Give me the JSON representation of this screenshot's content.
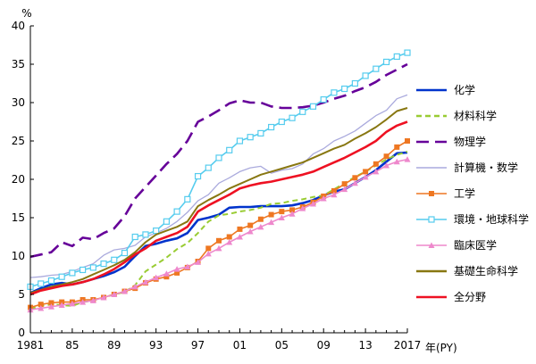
{
  "chart_data": {
    "type": "line",
    "y_unit_label": "%",
    "x_unit_label": "年(PY)",
    "ylim": [
      0,
      40
    ],
    "y_ticks": [
      0,
      5,
      10,
      15,
      20,
      25,
      30,
      35,
      40
    ],
    "xlim": [
      1981,
      2017
    ],
    "x_ticks": [
      1981,
      1985,
      1989,
      1993,
      1997,
      2001,
      2005,
      2009,
      2013,
      2017
    ],
    "x_tick_labels": [
      "1981",
      "85",
      "89",
      "93",
      "97",
      "01",
      "05",
      "09",
      "13",
      "2017"
    ],
    "grid": false,
    "legend_position": "right",
    "x": [
      1981,
      1982,
      1983,
      1984,
      1985,
      1986,
      1987,
      1988,
      1989,
      1990,
      1991,
      1992,
      1993,
      1994,
      1995,
      1996,
      1997,
      1998,
      1999,
      2000,
      2001,
      2002,
      2003,
      2004,
      2005,
      2006,
      2007,
      2008,
      2009,
      2010,
      2011,
      2012,
      2013,
      2014,
      2015,
      2016,
      2017
    ],
    "series": [
      {
        "name": "化学",
        "color": "#0033cc",
        "dash": "solid",
        "marker": "none",
        "values": [
          5.2,
          5.8,
          6.3,
          6.5,
          6.3,
          6.6,
          7.0,
          7.4,
          7.9,
          8.6,
          10.0,
          11.3,
          11.6,
          12.0,
          12.3,
          13.0,
          14.7,
          15.0,
          15.4,
          16.3,
          16.4,
          16.4,
          16.5,
          16.5,
          16.5,
          16.6,
          16.9,
          17.3,
          17.9,
          18.4,
          18.7,
          19.5,
          20.3,
          21.2,
          22.3,
          23.4,
          23.5
        ]
      },
      {
        "name": "材料科学",
        "color": "#99cc33",
        "dash": "dashed",
        "marker": "none",
        "values": [
          3.1,
          3.5,
          3.7,
          3.6,
          3.5,
          4.0,
          4.2,
          4.6,
          5.0,
          5.3,
          6.2,
          8.0,
          8.9,
          9.8,
          10.9,
          11.7,
          13.0,
          14.5,
          15.3,
          15.5,
          15.8,
          16.0,
          16.3,
          16.8,
          16.9,
          17.2,
          17.4,
          17.7,
          17.9,
          18.7,
          19.5,
          20.3,
          21.0,
          21.8,
          22.6,
          23.2,
          23.6
        ]
      },
      {
        "name": "物理学",
        "color": "#660099",
        "dash": "longdash",
        "marker": "none",
        "values": [
          9.9,
          10.2,
          10.5,
          11.8,
          11.3,
          12.4,
          12.2,
          13.0,
          13.6,
          15.2,
          17.5,
          19.0,
          20.5,
          22.0,
          23.3,
          25.0,
          27.5,
          28.2,
          29.0,
          29.9,
          30.3,
          30.0,
          30.0,
          29.5,
          29.3,
          29.3,
          29.4,
          29.6,
          30.0,
          30.5,
          30.9,
          31.5,
          32.0,
          32.7,
          33.6,
          34.3,
          35.0
        ]
      },
      {
        "name": "計算機・数学",
        "color": "#aaaadd",
        "dash": "solid",
        "marker": "none",
        "values": [
          7.2,
          7.3,
          7.5,
          7.6,
          8.0,
          8.5,
          9.0,
          10.1,
          10.8,
          11.0,
          11.4,
          12.5,
          13.0,
          13.6,
          14.5,
          15.7,
          17.2,
          18.0,
          19.5,
          20.2,
          21.0,
          21.5,
          21.7,
          20.8,
          21.2,
          21.4,
          22.0,
          23.3,
          24.0,
          25.0,
          25.6,
          26.3,
          27.3,
          28.3,
          29.0,
          30.5,
          31.0
        ]
      },
      {
        "name": "工学",
        "color": "#ee7722",
        "dash": "solid",
        "marker": "square",
        "values": [
          3.3,
          3.7,
          3.9,
          4.0,
          4.0,
          4.3,
          4.3,
          4.6,
          5.0,
          5.4,
          5.8,
          6.5,
          7.0,
          7.3,
          7.8,
          8.5,
          9.3,
          11.0,
          12.0,
          12.5,
          13.5,
          14.0,
          14.8,
          15.4,
          15.8,
          16.0,
          16.4,
          17.0,
          17.8,
          18.5,
          19.4,
          20.2,
          21.0,
          22.0,
          23.0,
          24.2,
          25.0
        ]
      },
      {
        "name": "環境・地球科学",
        "color": "#55ccee",
        "dash": "solid",
        "marker": "hollow-square",
        "values": [
          6.0,
          6.4,
          6.8,
          7.3,
          7.8,
          8.2,
          8.5,
          9.0,
          9.5,
          10.4,
          12.5,
          12.8,
          13.3,
          14.5,
          15.8,
          17.4,
          20.4,
          21.5,
          22.8,
          23.8,
          25.0,
          25.5,
          26.0,
          26.8,
          27.5,
          28.0,
          28.8,
          29.5,
          30.4,
          31.3,
          31.8,
          32.5,
          33.5,
          34.4,
          35.3,
          36.0,
          36.5
        ]
      },
      {
        "name": "臨床医学",
        "color": "#ee88cc",
        "dash": "solid",
        "marker": "triangle",
        "values": [
          3.0,
          3.2,
          3.4,
          3.6,
          3.8,
          4.0,
          4.2,
          4.6,
          5.0,
          5.4,
          6.0,
          6.6,
          7.2,
          7.7,
          8.3,
          8.6,
          9.2,
          10.3,
          11.0,
          11.8,
          12.5,
          13.2,
          13.8,
          14.4,
          15.0,
          15.5,
          16.2,
          16.8,
          17.5,
          18.0,
          18.7,
          19.5,
          20.3,
          21.0,
          21.8,
          22.3,
          22.6
        ]
      },
      {
        "name": "基礎生命科学",
        "color": "#887711",
        "dash": "solid",
        "marker": "none",
        "values": [
          5.2,
          5.6,
          6.0,
          6.3,
          6.6,
          7.0,
          7.6,
          8.2,
          8.8,
          9.5,
          10.5,
          11.8,
          12.8,
          13.3,
          13.8,
          14.5,
          16.5,
          17.3,
          18.0,
          18.8,
          19.4,
          20.0,
          20.6,
          21.0,
          21.4,
          21.8,
          22.2,
          22.8,
          23.4,
          24.0,
          24.5,
          25.3,
          26.0,
          26.8,
          27.8,
          28.9,
          29.3
        ]
      },
      {
        "name": "全分野",
        "color": "#ee1122",
        "dash": "solid",
        "marker": "none",
        "values": [
          5.0,
          5.5,
          5.8,
          6.1,
          6.3,
          6.6,
          7.0,
          7.6,
          8.3,
          9.2,
          10.2,
          11.0,
          12.0,
          12.5,
          13.0,
          13.8,
          15.8,
          16.6,
          17.3,
          18.0,
          18.8,
          19.2,
          19.5,
          19.7,
          20.0,
          20.3,
          20.6,
          21.0,
          21.6,
          22.2,
          22.8,
          23.5,
          24.2,
          25.0,
          26.2,
          27.0,
          27.5
        ]
      }
    ]
  }
}
